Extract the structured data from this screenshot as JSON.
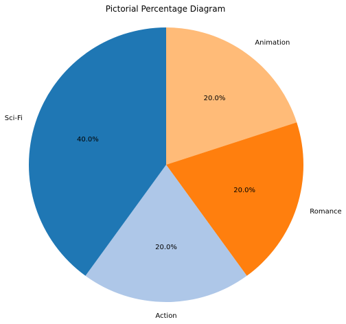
{
  "chart_data": {
    "type": "pie",
    "title": "Pictorial Percentage Diagram",
    "start_angle_deg": 90,
    "direction": "clockwise",
    "slices": [
      {
        "label": "Animation",
        "value": 20,
        "pct_label": "20.0%",
        "color": "#ffbb78"
      },
      {
        "label": "Romance",
        "value": 20,
        "pct_label": "20.0%",
        "color": "#ff7f0e"
      },
      {
        "label": "Action",
        "value": 20,
        "pct_label": "20.0%",
        "color": "#aec7e8"
      },
      {
        "label": "Sci-Fi",
        "value": 40,
        "pct_label": "40.0%",
        "color": "#1f77b4"
      }
    ]
  }
}
